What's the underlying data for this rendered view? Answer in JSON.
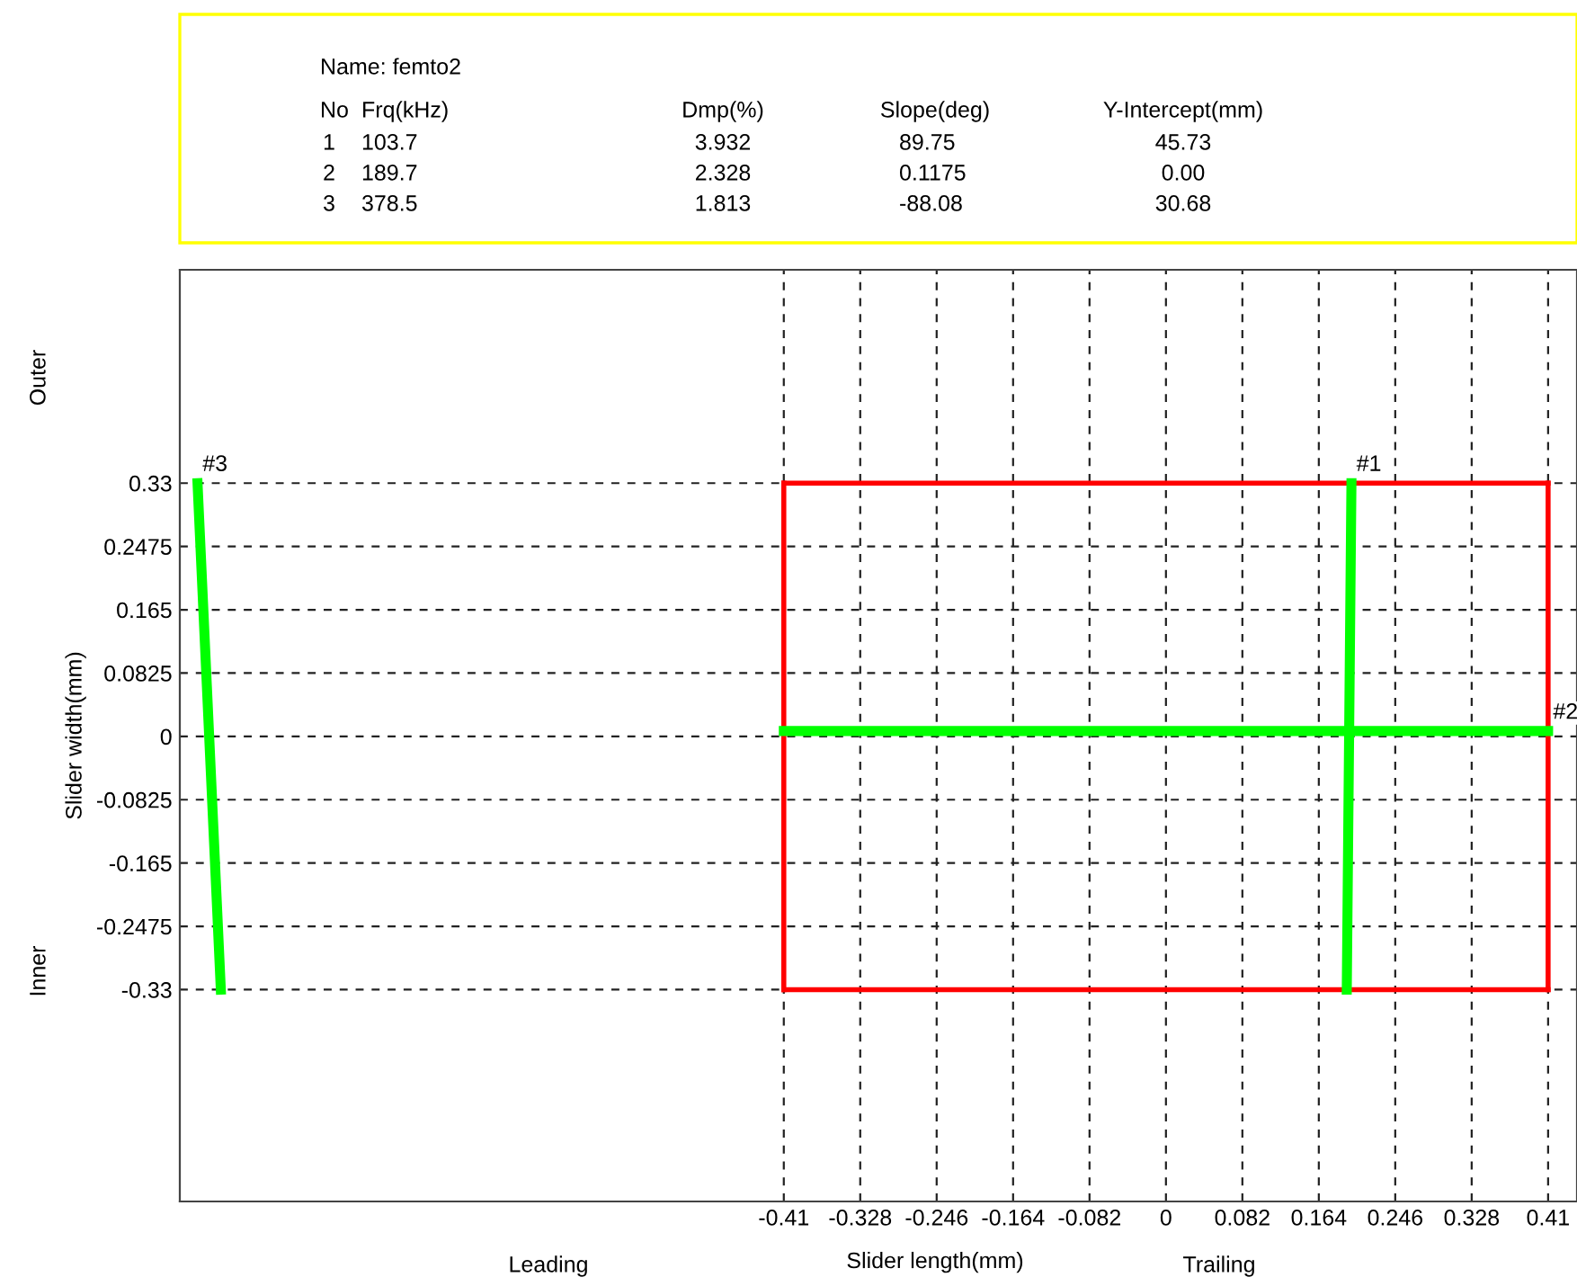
{
  "chart_data": {
    "type": "line",
    "xlabel": "Slider length(mm)",
    "ylabel": "Slider width(mm)",
    "xlim": [
      -1.058,
      0.441
    ],
    "ylim": [
      -0.606,
      0.608
    ],
    "xticks": [
      -0.41,
      -0.328,
      -0.246,
      -0.164,
      -0.082,
      0,
      0.082,
      0.164,
      0.246,
      0.328,
      0.41
    ],
    "yticks": [
      -0.33,
      -0.2475,
      -0.165,
      -0.0825,
      0,
      0.0825,
      0.165,
      0.2475,
      0.33
    ],
    "grid": true,
    "line_style": "solid",
    "marker": "none",
    "legend": false,
    "series": [
      {
        "color": "#00ff00",
        "x": [
          0.199,
          0.194
        ],
        "values": [
          0.33,
          -0.33
        ]
      },
      {
        "color": "#00ff00",
        "x": [
          -0.41,
          0.41
        ],
        "values": [
          0.007,
          0.007
        ]
      },
      {
        "color": "#00ff00",
        "x": [
          -1.039,
          -1.014
        ],
        "values": [
          0.33,
          -0.33
        ]
      },
      {
        "color": "#ff0000",
        "x": [
          -0.41,
          0.41
        ],
        "values": [
          0.33,
          0.33
        ]
      },
      {
        "color": "#ff0000",
        "x": [
          -0.41,
          0.41
        ],
        "values": [
          -0.33,
          -0.33
        ]
      },
      {
        "color": "#ff0000",
        "x": [
          -0.41,
          -0.41
        ],
        "values": [
          0.33,
          -0.33
        ]
      },
      {
        "color": "#ff0000",
        "x": [
          0.41,
          0.41
        ],
        "values": [
          0.33,
          -0.33
        ]
      }
    ],
    "annotations": [
      "Name: femto2",
      "No",
      "Frq(kHz)",
      "Dmp(%)",
      "Slope(deg)",
      "Y-Intercept(mm)",
      "1",
      "103.7",
      "3.932",
      "89.75",
      "45.73",
      "2",
      "189.7",
      "2.328",
      "0.1175",
      "0.00",
      "3",
      "378.5",
      "1.813",
      "-88.08",
      "30.68",
      "Outer",
      "Inner",
      "Leading",
      "Trailing",
      {
        "text": "#1",
        "x": 0.199,
        "y": 0.33
      },
      {
        "text": "#2",
        "x": 0.41,
        "y": 0.007
      },
      {
        "text": "#3",
        "x": -1.039,
        "y": 0.33
      }
    ]
  }
}
